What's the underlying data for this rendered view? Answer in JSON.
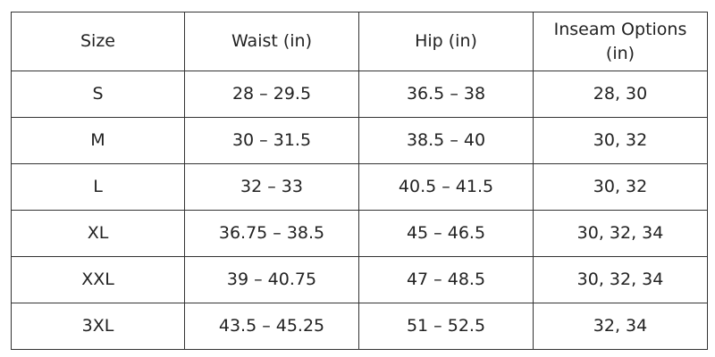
{
  "table": {
    "header": [
      "Size",
      "Waist (in)",
      "Hip (in)",
      "Inseam Options (in)"
    ],
    "rows": [
      [
        "S",
        "28 – 29.5",
        "36.5 – 38",
        "28, 30"
      ],
      [
        "M",
        "30 – 31.5",
        "38.5 – 40",
        "30, 32"
      ],
      [
        "L",
        "32 – 33",
        "40.5 – 41.5",
        "30, 32"
      ],
      [
        "XL",
        "36.75 – 38.5",
        "45 – 46.5",
        "30, 32, 34"
      ],
      [
        "XXL",
        "39 – 40.75",
        "47 – 48.5",
        "30, 32, 34"
      ],
      [
        "3XL",
        "43.5 – 45.25",
        "51 – 52.5",
        "32, 34"
      ]
    ]
  }
}
